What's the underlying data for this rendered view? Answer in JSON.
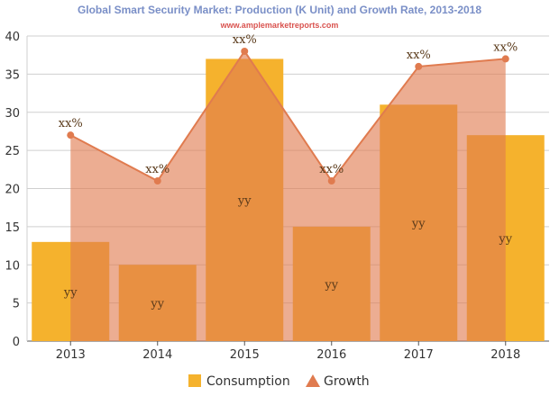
{
  "chart_data": {
    "type": "bar",
    "title": "Global Smart Security Market: Production (K Unit) and Growth Rate, 2013-2018",
    "subtitle": "www.amplemarketreports.com",
    "categories": [
      "2013",
      "2014",
      "2015",
      "2016",
      "2017",
      "2018"
    ],
    "ylim": [
      0,
      40
    ],
    "yticks": [
      0,
      5,
      10,
      15,
      20,
      25,
      30,
      35,
      40
    ],
    "grid": true,
    "legend_position": "bottom",
    "series": [
      {
        "name": "Consumption",
        "type": "bar",
        "color": "#f5b22d",
        "values": [
          13,
          10,
          37,
          15,
          31,
          27
        ],
        "labels": [
          "yy",
          "yy",
          "yy",
          "yy",
          "yy",
          "yy"
        ]
      },
      {
        "name": "Growth",
        "type": "area",
        "color": "#e07b4f",
        "values": [
          27,
          21,
          38,
          21,
          36,
          37
        ],
        "labels": [
          "xx%",
          "xx%",
          "xx%",
          "xx%",
          "xx%",
          "xx%"
        ]
      }
    ]
  }
}
